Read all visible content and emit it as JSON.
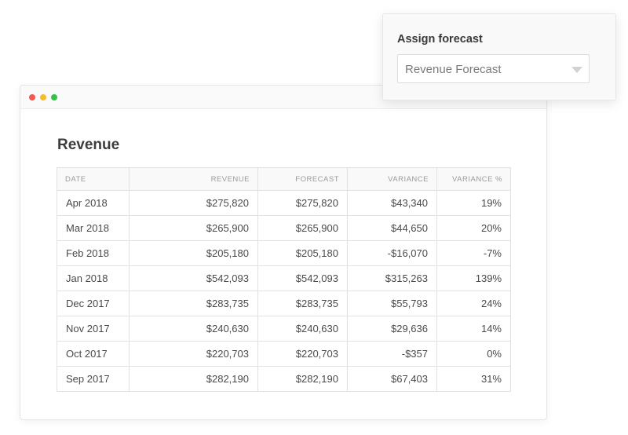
{
  "window": {
    "controls": [
      "close",
      "minimize",
      "maximize"
    ]
  },
  "page": {
    "title": "Revenue"
  },
  "table": {
    "columns": [
      "DATE",
      "REVENUE",
      "FORECAST",
      "VARIANCE",
      "VARIANCE %"
    ],
    "rows": [
      [
        "Apr 2018",
        "$275,820",
        "$275,820",
        "$43,340",
        "19%"
      ],
      [
        "Mar 2018",
        "$265,900",
        "$265,900",
        "$44,650",
        "20%"
      ],
      [
        "Feb 2018",
        "$205,180",
        "$205,180",
        "-$16,070",
        "-7%"
      ],
      [
        "Jan 2018",
        "$542,093",
        "$542,093",
        "$315,263",
        "139%"
      ],
      [
        "Dec 2017",
        "$283,735",
        "$283,735",
        "$55,793",
        "24%"
      ],
      [
        "Nov 2017",
        "$240,630",
        "$240,630",
        "$29,636",
        "14%"
      ],
      [
        "Oct 2017",
        "$220,703",
        "$220,703",
        "-$357",
        "0%"
      ],
      [
        "Sep 2017",
        "$282,190",
        "$282,190",
        "$67,403",
        "31%"
      ]
    ]
  },
  "assign_panel": {
    "title": "Assign forecast",
    "select": {
      "value": "Revenue Forecast",
      "icon": "chevron-down-icon"
    }
  },
  "colors": {
    "close_dot": "#f05a50",
    "minimize_dot": "#f5bd2c",
    "maximize_dot": "#36c24a"
  }
}
